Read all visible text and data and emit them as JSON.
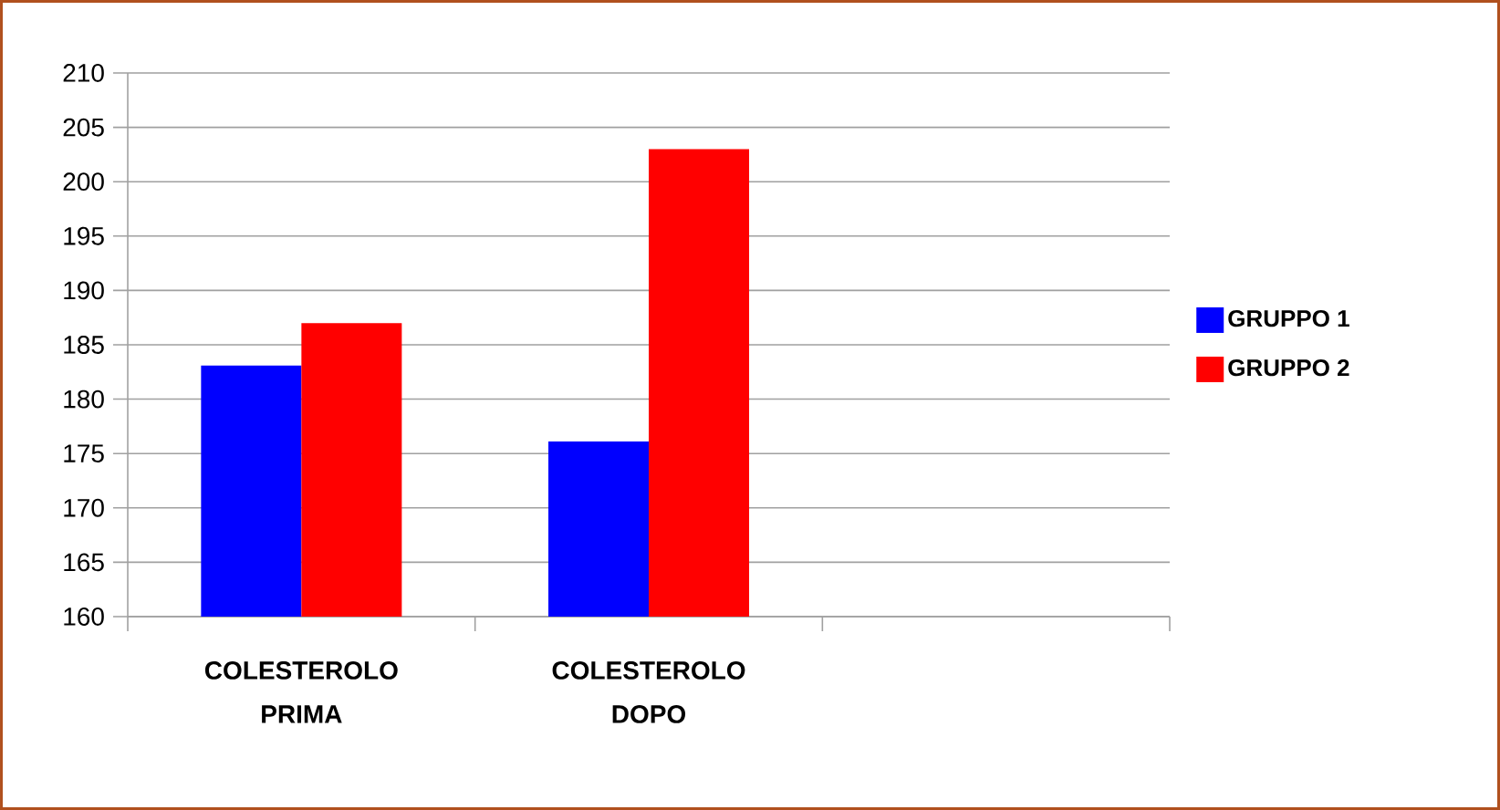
{
  "chart_data": {
    "type": "bar",
    "categories": [
      "COLESTEROLO PRIMA",
      "COLESTEROLO DOPO",
      null
    ],
    "series": [
      {
        "name": "GRUPPO 1",
        "color": "#0000ff",
        "values": [
          183.1,
          176.1,
          null
        ]
      },
      {
        "name": "GRUPPO 2",
        "color": "#ff0000",
        "values": [
          187,
          203,
          null
        ]
      }
    ],
    "ylim": [
      160,
      210
    ],
    "yticks": [
      160,
      165,
      170,
      175,
      180,
      185,
      190,
      195,
      200,
      205,
      210
    ],
    "grid": "y",
    "legend": "right"
  }
}
